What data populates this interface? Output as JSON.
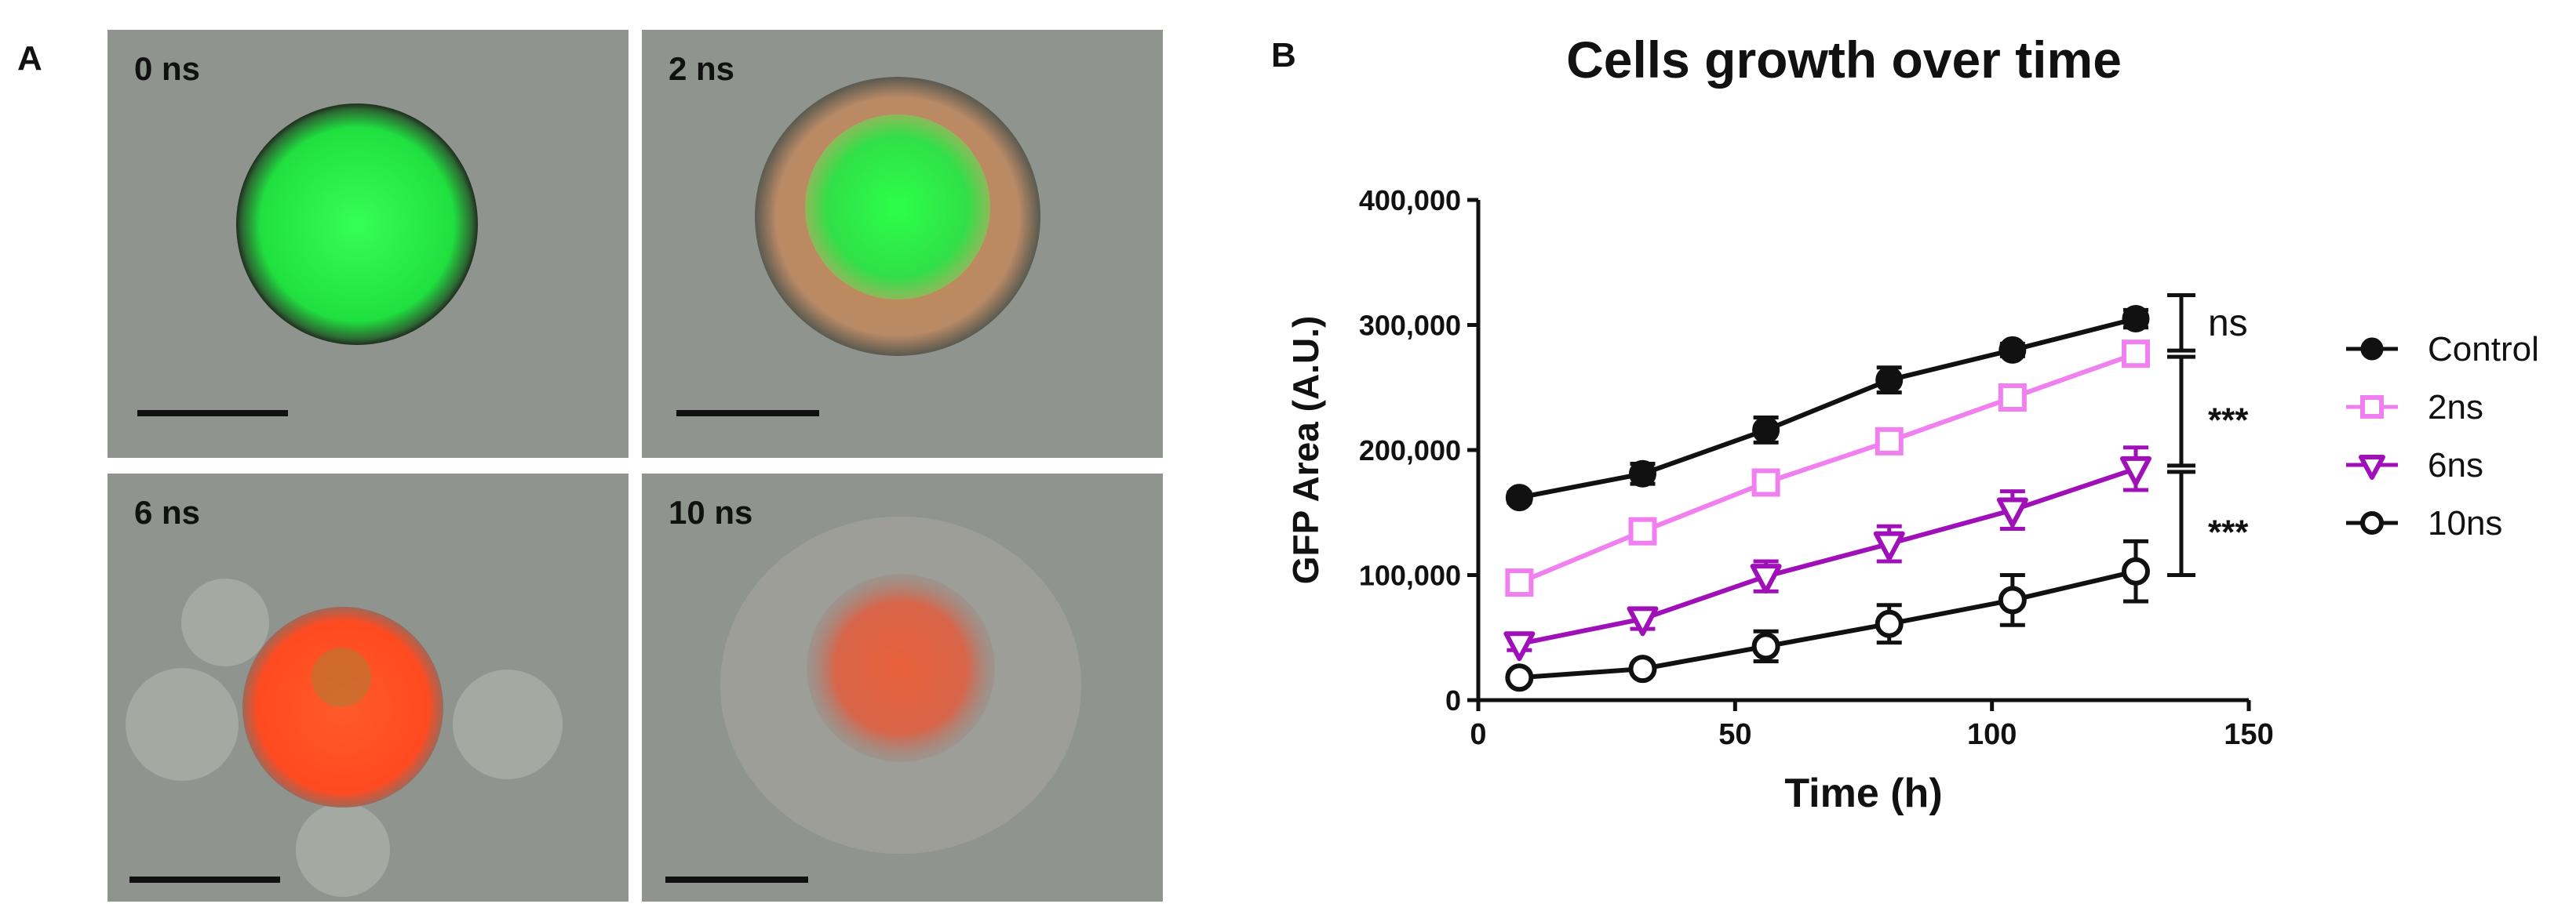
{
  "panel_a": {
    "letter": "A",
    "tiles": [
      {
        "label": "0 ns"
      },
      {
        "label": "2 ns"
      },
      {
        "label": "6 ns"
      },
      {
        "label": "10 ns"
      }
    ]
  },
  "panel_b": {
    "letter": "B"
  },
  "chart_data": {
    "type": "line",
    "title": "Cells growth over time",
    "xlabel": "Time (h)",
    "ylabel": "GFP Area (A.U.)",
    "xlim": [
      0,
      150
    ],
    "ylim": [
      0,
      400000
    ],
    "xticks": [
      0,
      50,
      100,
      150
    ],
    "xtick_labels": [
      "0",
      "50",
      "100",
      "150"
    ],
    "yticks": [
      0,
      100000,
      200000,
      300000,
      400000
    ],
    "ytick_labels": [
      "0",
      "100,000",
      "200,000",
      "300,000",
      "400,000"
    ],
    "grid": false,
    "legend_position": "right",
    "x": [
      8,
      32,
      56,
      80,
      104,
      128
    ],
    "series": [
      {
        "name": "Control",
        "color": "#111111",
        "marker": "filled-circle",
        "values": [
          162000,
          181000,
          216000,
          256000,
          280000,
          305000
        ],
        "errors": [
          4000,
          8000,
          10000,
          10000,
          5000,
          7000
        ]
      },
      {
        "name": "2ns",
        "color": "#f07ff0",
        "marker": "open-square",
        "values": [
          94000,
          135000,
          174000,
          207000,
          242000,
          277000
        ],
        "errors": [
          4000,
          5000,
          6000,
          6000,
          6000,
          7000
        ]
      },
      {
        "name": "6ns",
        "color": "#a010b8",
        "marker": "open-triangle-down",
        "values": [
          45000,
          65000,
          99000,
          125000,
          152000,
          185000
        ],
        "errors": [
          5000,
          8000,
          12000,
          14000,
          15000,
          17000
        ]
      },
      {
        "name": "10ns",
        "color": "#111111",
        "marker": "open-circle",
        "values": [
          18000,
          25000,
          43000,
          61000,
          80000,
          103000
        ],
        "errors": [
          3000,
          4000,
          12000,
          15000,
          20000,
          24000
        ]
      }
    ],
    "significance": [
      {
        "label": "ns",
        "between": [
          "Control",
          "2ns"
        ]
      },
      {
        "label": "***",
        "between": [
          "2ns",
          "6ns"
        ]
      },
      {
        "label": "***",
        "between": [
          "6ns",
          "10ns"
        ]
      }
    ]
  }
}
